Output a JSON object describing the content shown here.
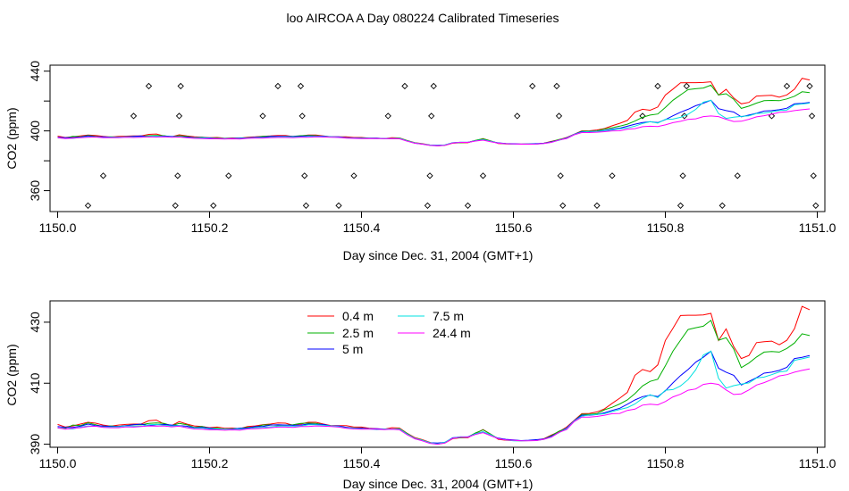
{
  "figure": {
    "title": "loo AIRCOA A  Day 080224  Calibrated Timeseries"
  },
  "chart_data": [
    {
      "type": "line",
      "id": "top",
      "xlabel": "Day since Dec. 31, 2004 (GMT+1)",
      "ylabel": "CO2 (ppm)",
      "xlim": [
        1149.99,
        1151.01
      ],
      "ylim": [
        346,
        444
      ],
      "xticks": [
        1150.0,
        1150.2,
        1150.4,
        1150.6,
        1150.8,
        1151.0
      ],
      "xtick_labels": [
        "1150.0",
        "1150.2",
        "1150.4",
        "1150.6",
        "1150.8",
        "1151.0"
      ],
      "yticks": [
        360,
        380,
        400,
        420,
        440
      ],
      "ytick_labels": [
        "360",
        "",
        "400",
        "",
        "440"
      ],
      "grid": false,
      "markers": {
        "style": "open-diamond",
        "x": [
          1150.04,
          1150.06,
          1150.1,
          1150.12,
          1150.155,
          1150.158,
          1150.16,
          1150.162,
          1150.205,
          1150.225,
          1150.27,
          1150.29,
          1150.32,
          1150.322,
          1150.325,
          1150.327,
          1150.37,
          1150.39,
          1150.435,
          1150.457,
          1150.487,
          1150.49,
          1150.492,
          1150.495,
          1150.54,
          1150.56,
          1150.605,
          1150.625,
          1150.657,
          1150.66,
          1150.662,
          1150.665,
          1150.71,
          1150.73,
          1150.77,
          1150.79,
          1150.82,
          1150.823,
          1150.825,
          1150.828,
          1150.875,
          1150.895,
          1150.94,
          1150.96,
          1150.99,
          1150.993,
          1150.995,
          1150.998
        ],
        "y": [
          350,
          370,
          410,
          430,
          350,
          370,
          410,
          430,
          350,
          370,
          410,
          430,
          430,
          410,
          370,
          350,
          350,
          370,
          410,
          430,
          350,
          370,
          410,
          430,
          350,
          370,
          410,
          430,
          430,
          410,
          370,
          350,
          350,
          370,
          410,
          430,
          350,
          370,
          410,
          430,
          350,
          370,
          410,
          430,
          430,
          410,
          370,
          350
        ]
      }
    },
    {
      "type": "line",
      "id": "bottom",
      "xlabel": "Day since Dec. 31, 2004 (GMT+1)",
      "ylabel": "CO2 (ppm)",
      "xlim": [
        1149.99,
        1151.01
      ],
      "ylim": [
        389,
        437
      ],
      "xticks": [
        1150.0,
        1150.2,
        1150.4,
        1150.6,
        1150.8,
        1151.0
      ],
      "xtick_labels": [
        "1150.0",
        "1150.2",
        "1150.4",
        "1150.6",
        "1150.8",
        "1151.0"
      ],
      "yticks": [
        390,
        410,
        430
      ],
      "ytick_labels": [
        "390",
        "410",
        "430"
      ],
      "grid": false,
      "legend": {
        "placement": "top-left"
      }
    }
  ],
  "series_data": {
    "x": [
      1150.0,
      1150.01,
      1150.02,
      1150.03,
      1150.04,
      1150.05,
      1150.06,
      1150.07,
      1150.08,
      1150.09,
      1150.1,
      1150.11,
      1150.12,
      1150.13,
      1150.14,
      1150.15,
      1150.16,
      1150.17,
      1150.18,
      1150.19,
      1150.2,
      1150.21,
      1150.22,
      1150.23,
      1150.24,
      1150.25,
      1150.26,
      1150.27,
      1150.28,
      1150.29,
      1150.3,
      1150.31,
      1150.32,
      1150.33,
      1150.34,
      1150.35,
      1150.36,
      1150.37,
      1150.38,
      1150.39,
      1150.4,
      1150.41,
      1150.42,
      1150.43,
      1150.44,
      1150.45,
      1150.46,
      1150.47,
      1150.48,
      1150.49,
      1150.5,
      1150.51,
      1150.52,
      1150.53,
      1150.54,
      1150.55,
      1150.56,
      1150.57,
      1150.58,
      1150.59,
      1150.6,
      1150.61,
      1150.62,
      1150.63,
      1150.64,
      1150.65,
      1150.66,
      1150.67,
      1150.68,
      1150.69,
      1150.7,
      1150.71,
      1150.72,
      1150.73,
      1150.74,
      1150.75,
      1150.76,
      1150.77,
      1150.78,
      1150.79,
      1150.8,
      1150.81,
      1150.82,
      1150.83,
      1150.84,
      1150.85,
      1150.86,
      1150.87,
      1150.88,
      1150.89,
      1150.9,
      1150.91,
      1150.92,
      1150.93,
      1150.94,
      1150.95,
      1150.96,
      1150.97,
      1150.98,
      1150.99
    ],
    "series": [
      {
        "name": "0.4 m",
        "color": "#ff0000",
        "values": [
          396.5,
          395.6,
          396.0,
          396.6,
          397.2,
          396.9,
          396.3,
          395.9,
          396.3,
          396.5,
          396.6,
          396.6,
          397.7,
          397.9,
          396.6,
          396.1,
          397.4,
          396.6,
          396.0,
          395.8,
          395.4,
          395.6,
          395.2,
          395.3,
          395.1,
          395.8,
          396.0,
          396.4,
          396.6,
          397.0,
          396.9,
          396.2,
          396.6,
          397.2,
          397.2,
          396.6,
          396.1,
          396.1,
          396.1,
          395.6,
          395.6,
          395.2,
          395.1,
          394.9,
          395.4,
          395.3,
          393.6,
          392.2,
          391.5,
          390.6,
          390.0,
          390.4,
          391.8,
          392.1,
          392.1,
          393.5,
          394.8,
          393.3,
          391.6,
          391.3,
          391.2,
          391.2,
          391.2,
          391.3,
          391.8,
          393.0,
          394.1,
          395.6,
          397.8,
          400.0,
          400.1,
          400.6,
          401.6,
          403.4,
          405.1,
          407.0,
          412.6,
          414.5,
          413.8,
          416.0,
          424.0,
          428.0,
          432.2,
          432.3,
          432.3,
          432.4,
          432.9,
          424.0,
          427.8,
          422.0,
          418.1,
          419.1,
          423.3,
          423.6,
          423.8,
          422.6,
          424.1,
          427.9,
          435.2,
          434.1
        ]
      },
      {
        "name": "2.5 m",
        "color": "#00b000",
        "values": [
          395.3,
          395.2,
          396.3,
          396.1,
          397.0,
          396.4,
          395.8,
          396.0,
          395.8,
          396.1,
          396.4,
          396.4,
          396.8,
          397.0,
          396.8,
          396.1,
          396.8,
          396.4,
          395.5,
          395.8,
          395.2,
          395.2,
          394.9,
          395.0,
          395.2,
          395.5,
          395.6,
          396.3,
          396.4,
          396.2,
          396.3,
          396.4,
          396.8,
          396.9,
          396.8,
          396.4,
          395.9,
          395.9,
          395.5,
          395.3,
          395.3,
          395.0,
          395.0,
          394.9,
          395.0,
          395.1,
          393.5,
          392.0,
          391.3,
          390.4,
          390.2,
          390.6,
          392.0,
          392.1,
          392.3,
          393.7,
          394.7,
          393.3,
          391.8,
          391.5,
          391.2,
          391.1,
          391.2,
          391.2,
          391.7,
          392.8,
          394.3,
          395.2,
          397.6,
          399.8,
          399.8,
          400.0,
          401.3,
          402.1,
          403.2,
          404.5,
          406.6,
          409.1,
          410.6,
          411.3,
          415.7,
          420.5,
          424.1,
          427.6,
          428.2,
          428.7,
          430.6,
          424.1,
          424.9,
          421.2,
          415.1,
          416.6,
          418.6,
          420.2,
          420.4,
          420.2,
          421.4,
          423.2,
          426.2,
          425.6
        ]
      },
      {
        "name": "5 m",
        "color": "#0000ff",
        "values": [
          395.8,
          395.5,
          395.5,
          395.9,
          396.6,
          396.1,
          396.0,
          395.8,
          395.8,
          396.1,
          396.4,
          396.6,
          396.1,
          396.4,
          396.5,
          396.3,
          396.1,
          395.9,
          395.4,
          395.5,
          395.3,
          394.9,
          395.0,
          395.0,
          395.2,
          395.3,
          395.8,
          395.8,
          396.3,
          396.4,
          396.3,
          396.2,
          396.3,
          396.6,
          396.5,
          396.5,
          396.0,
          396.0,
          395.5,
          395.3,
          395.2,
          395.1,
          395.1,
          394.9,
          394.9,
          394.9,
          393.3,
          391.8,
          391.2,
          390.5,
          390.4,
          390.6,
          392.1,
          392.4,
          392.4,
          393.4,
          394.1,
          392.9,
          392.0,
          391.6,
          391.4,
          391.2,
          391.3,
          391.5,
          391.7,
          392.6,
          393.8,
          395.3,
          397.7,
          399.5,
          399.5,
          399.7,
          400.3,
          401.1,
          401.8,
          403.1,
          404.5,
          405.6,
          406.1,
          405.6,
          407.5,
          410.1,
          412.5,
          414.5,
          416.9,
          418.5,
          420.5,
          414.9,
          413.6,
          412.6,
          409.4,
          410.6,
          411.8,
          413.3,
          413.6,
          414.2,
          415.2,
          418.1,
          418.5,
          419.1
        ]
      },
      {
        "name": "7.5 m",
        "color": "#00e0e0",
        "values": [
          395.4,
          395.0,
          395.0,
          395.6,
          396.0,
          395.9,
          395.6,
          395.6,
          395.7,
          396.0,
          395.9,
          395.9,
          396.4,
          396.5,
          396.2,
          396.0,
          396.1,
          395.5,
          395.3,
          395.3,
          395.0,
          394.9,
          395.0,
          394.9,
          394.9,
          395.1,
          395.4,
          395.5,
          395.7,
          395.9,
          396.0,
          395.9,
          395.9,
          396.4,
          396.4,
          396.2,
          396.0,
          395.8,
          395.3,
          395.2,
          395.0,
          395.0,
          394.8,
          394.9,
          395.0,
          395.0,
          393.3,
          392.0,
          391.3,
          390.5,
          390.1,
          390.7,
          392.0,
          392.4,
          392.3,
          393.4,
          394.1,
          393.1,
          391.8,
          391.4,
          391.1,
          391.1,
          391.2,
          391.2,
          391.6,
          392.4,
          393.8,
          395.1,
          397.6,
          399.2,
          399.6,
          399.7,
          400.0,
          400.7,
          401.4,
          402.0,
          403.2,
          405.0,
          406.2,
          405.3,
          407.7,
          407.9,
          409.1,
          411.2,
          414.4,
          419.2,
          420.5,
          411.6,
          408.4,
          409.2,
          409.7,
          410.1,
          411.7,
          412.0,
          412.8,
          413.7,
          414.0,
          417.5,
          418.0,
          418.6
        ]
      },
      {
        "name": "24.4 m",
        "color": "#ff00ff",
        "values": [
          395.4,
          394.9,
          395.2,
          395.4,
          395.8,
          395.9,
          395.5,
          395.4,
          395.4,
          395.7,
          395.6,
          395.8,
          396.0,
          395.9,
          396.0,
          395.7,
          395.9,
          395.4,
          395.0,
          394.9,
          394.7,
          394.7,
          394.6,
          394.7,
          394.6,
          395.0,
          395.1,
          395.2,
          395.4,
          395.6,
          395.6,
          395.5,
          395.8,
          395.8,
          396.0,
          395.9,
          395.8,
          395.6,
          395.2,
          395.0,
          394.9,
          394.9,
          394.9,
          394.8,
          394.9,
          394.7,
          393.1,
          391.8,
          391.1,
          390.3,
          390.0,
          390.4,
          391.9,
          392.3,
          392.3,
          393.2,
          393.8,
          392.8,
          391.8,
          391.4,
          391.3,
          391.1,
          391.1,
          391.2,
          391.6,
          392.3,
          393.9,
          394.8,
          397.4,
          398.9,
          398.9,
          399.1,
          399.5,
          400.0,
          400.1,
          401.1,
          401.5,
          402.8,
          403.1,
          402.9,
          404.0,
          405.5,
          406.4,
          407.7,
          408.1,
          409.6,
          410.0,
          409.6,
          407.8,
          406.3,
          406.5,
          407.8,
          409.4,
          410.2,
          411.2,
          412.4,
          412.8,
          413.6,
          414.2,
          414.7
        ]
      }
    ]
  }
}
